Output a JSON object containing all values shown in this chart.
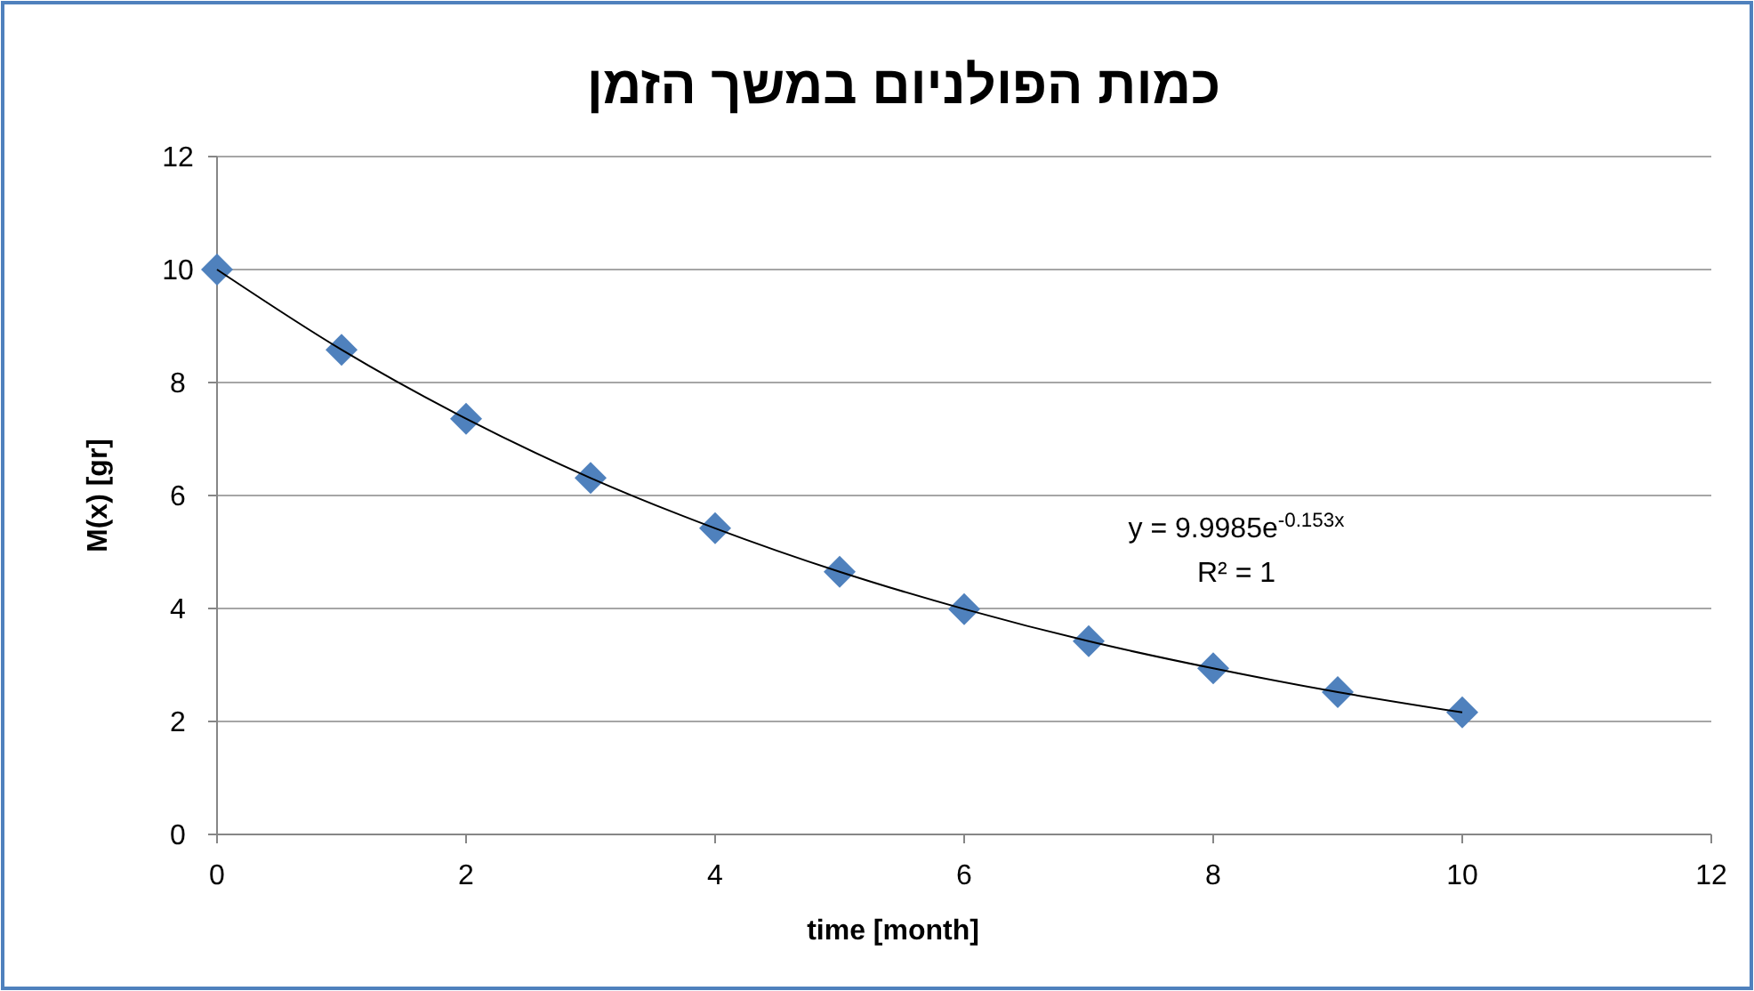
{
  "chart_data": {
    "type": "scatter",
    "title": "כמות הפולניום במשך הזמן",
    "xlabel": "time [month]",
    "ylabel": "M(x) [gr]",
    "x": [
      0,
      1,
      2,
      3,
      4,
      5,
      6,
      7,
      8,
      9,
      10
    ],
    "series": [
      {
        "color": "#4f81bd",
        "marker": "diamond",
        "values": [
          10,
          8.58,
          7.36,
          6.31,
          5.42,
          4.65,
          3.99,
          3.42,
          2.94,
          2.52,
          2.16
        ]
      },
      {
        "type": "line",
        "color": "#000000",
        "marker": "none",
        "line_style": "solid",
        "x": [
          0,
          1,
          2,
          3,
          4,
          5,
          6,
          7,
          8,
          9,
          10
        ],
        "values": [
          10,
          8.58,
          7.36,
          6.31,
          5.42,
          4.65,
          3.99,
          3.42,
          2.94,
          2.52,
          2.16
        ]
      }
    ],
    "annotations": [
      "y = 9.9985e$^{-0.153x}$",
      "R² = 1"
    ],
    "xlim": [
      0,
      12
    ],
    "xticks": [
      0,
      2,
      4,
      6,
      8,
      10,
      12
    ],
    "ylim": [
      0,
      12
    ],
    "yticks": [
      0,
      2,
      4,
      6,
      8,
      10,
      12
    ],
    "grid": "y"
  }
}
